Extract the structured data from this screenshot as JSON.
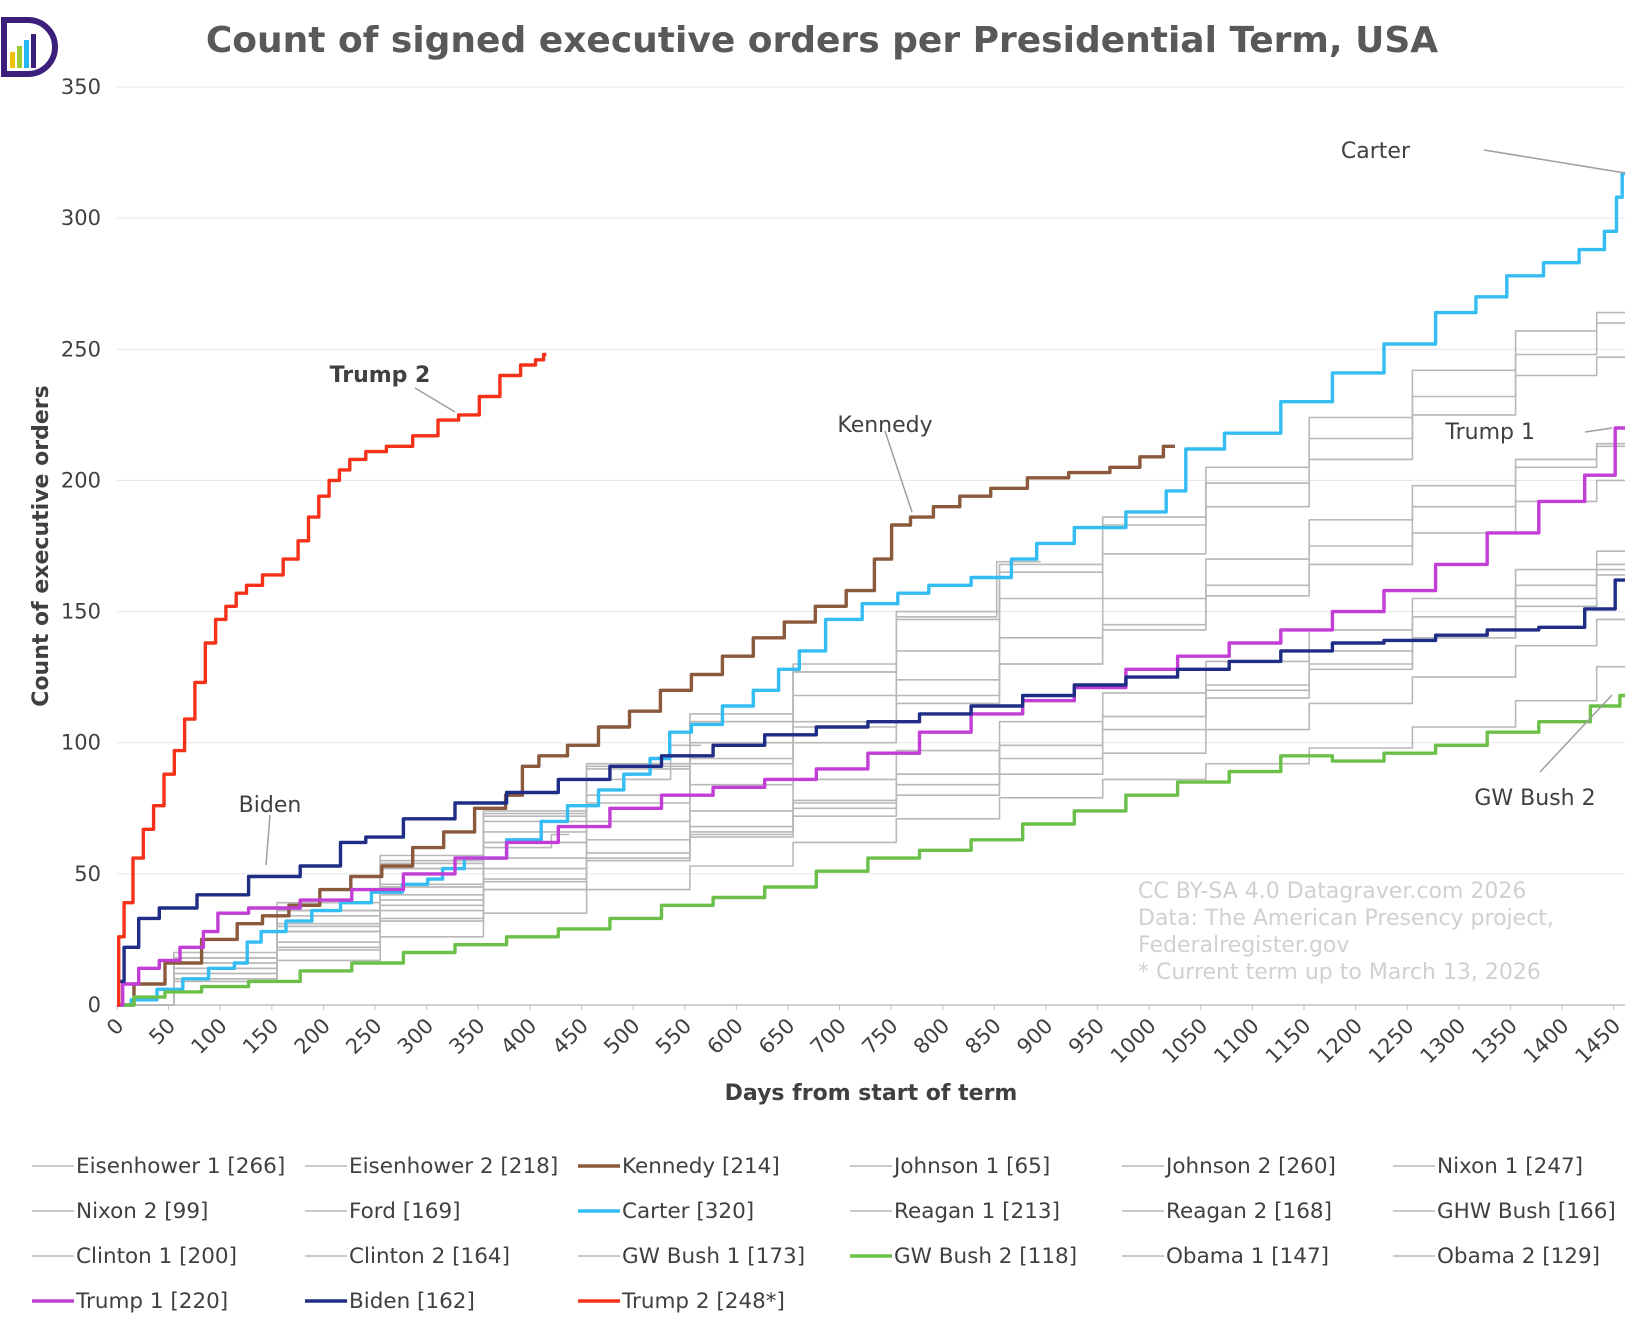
{
  "title": "Count of signed executive orders per Presidential Term, USA",
  "colors": {
    "gray": "#b8b8b8",
    "kennedy": "#8b5a3c",
    "carter": "#33bdf2",
    "gw_bush_2": "#6cc04a",
    "trump_1": "#c23ed6",
    "biden": "#1f2d86",
    "trump_2": "#f5311a",
    "logo_purple": "#3b1f7a"
  },
  "annotations": [
    {
      "text": "Trump 2",
      "bold": true,
      "series": "Trump 2"
    },
    {
      "text": "Kennedy",
      "bold": false,
      "series": "Kennedy"
    },
    {
      "text": "Carter",
      "bold": false,
      "series": "Carter"
    },
    {
      "text": "Trump 1",
      "bold": false,
      "series": "Trump 1"
    },
    {
      "text": "Biden",
      "bold": false,
      "series": "Biden"
    },
    {
      "text": "GW Bush 2",
      "bold": false,
      "series": "GW Bush 2"
    }
  ],
  "credits": [
    "CC BY-SA 4.0 Datagraver.com 2026",
    "Data: The American Presency project,",
    "Federalregister.gov",
    "* Current term up to March 13, 2026"
  ],
  "chart_data": {
    "type": "line",
    "title": "Count of signed executive orders per Presidential Term, USA",
    "xlabel": "Days from start of term",
    "ylabel": "Count of executive orders",
    "xlim": [
      0,
      1461
    ],
    "ylim": [
      0,
      350
    ],
    "x_ticks": [
      0,
      50,
      100,
      150,
      200,
      250,
      300,
      350,
      400,
      450,
      500,
      550,
      600,
      650,
      700,
      750,
      800,
      850,
      900,
      950,
      1000,
      1050,
      1100,
      1150,
      1200,
      1250,
      1300,
      1350,
      1400,
      1450
    ],
    "y_ticks": [
      0,
      50,
      100,
      150,
      200,
      250,
      300,
      350
    ],
    "grid": "horizontal",
    "legend_position": "bottom",
    "series": [
      {
        "name": "Eisenhower 1 [266]",
        "color": "gray",
        "x": [
          0,
          100,
          200,
          300,
          400,
          500,
          600,
          700,
          800,
          900,
          1000,
          1100,
          1200,
          1300,
          1400,
          1461
        ],
        "values": [
          0,
          18,
          36,
          55,
          74,
          92,
          111,
          130,
          150,
          168,
          186,
          205,
          224,
          242,
          257,
          264
        ]
      },
      {
        "name": "Eisenhower 2 [218]",
        "color": "gray",
        "x": [
          0,
          100,
          200,
          300,
          400,
          500,
          600,
          700,
          800,
          900,
          1000,
          1100,
          1200,
          1300,
          1400,
          1461
        ],
        "values": [
          0,
          16,
          31,
          46,
          62,
          77,
          92,
          108,
          124,
          140,
          155,
          170,
          185,
          198,
          208,
          214
        ]
      },
      {
        "name": "Kennedy [214]",
        "color": "kennedy",
        "x": [
          0,
          30,
          60,
          100,
          130,
          150,
          180,
          210,
          240,
          270,
          300,
          330,
          360,
          390,
          395,
          420,
          450,
          480,
          510,
          540,
          570,
          600,
          630,
          660,
          690,
          720,
          745,
          755,
          780,
          800,
          830,
          860,
          900,
          940,
          980,
          1000,
          1025
        ],
        "values": [
          0,
          8,
          16,
          25,
          31,
          34,
          38,
          44,
          49,
          53,
          60,
          66,
          75,
          80,
          91,
          95,
          99,
          106,
          112,
          120,
          126,
          133,
          140,
          146,
          152,
          158,
          170,
          183,
          186,
          190,
          194,
          197,
          201,
          203,
          205,
          209,
          213
        ]
      },
      {
        "name": "Johnson 1 [65]",
        "color": "gray",
        "x": [
          0,
          100,
          200,
          300,
          400,
          438
        ],
        "values": [
          0,
          12,
          30,
          45,
          60,
          65
        ]
      },
      {
        "name": "Johnson 2 [260]",
        "color": "gray",
        "x": [
          0,
          100,
          200,
          300,
          400,
          500,
          600,
          700,
          800,
          900,
          1000,
          1100,
          1200,
          1300,
          1400,
          1461
        ],
        "values": [
          0,
          20,
          39,
          57,
          73,
          91,
          108,
          127,
          147,
          165,
          183,
          199,
          216,
          232,
          248,
          260
        ]
      },
      {
        "name": "Nixon 1 [247]",
        "color": "gray",
        "x": [
          0,
          100,
          200,
          300,
          400,
          500,
          600,
          700,
          800,
          900,
          1000,
          1100,
          1200,
          1300,
          1400,
          1461
        ],
        "values": [
          0,
          14,
          30,
          45,
          62,
          80,
          100,
          118,
          135,
          155,
          172,
          190,
          208,
          225,
          240,
          247
        ]
      },
      {
        "name": "Nixon 2 [99]",
        "color": "gray",
        "x": [
          0,
          100,
          200,
          300,
          400,
          500,
          566
        ],
        "values": [
          0,
          18,
          34,
          52,
          70,
          86,
          99
        ]
      },
      {
        "name": "Ford [169]",
        "color": "gray",
        "x": [
          0,
          100,
          200,
          300,
          400,
          500,
          600,
          700,
          800,
          895
        ],
        "values": [
          0,
          18,
          36,
          54,
          72,
          90,
          108,
          127,
          148,
          169
        ]
      },
      {
        "name": "Carter [320]",
        "color": "carter",
        "x": [
          0,
          25,
          50,
          75,
          100,
          125,
          127,
          150,
          175,
          200,
          230,
          260,
          290,
          310,
          320,
          350,
          400,
          420,
          450,
          480,
          500,
          530,
          540,
          570,
          600,
          630,
          650,
          670,
          700,
          740,
          770,
          800,
          850,
          880,
          900,
          950,
          1000,
          1030,
          1040,
          1100,
          1150,
          1200,
          1250,
          1300,
          1330,
          1360,
          1400,
          1430,
          1450,
          1455,
          1461
        ],
        "values": [
          0,
          2,
          6,
          10,
          14,
          16,
          24,
          28,
          32,
          36,
          39,
          43,
          46,
          48,
          52,
          56,
          63,
          70,
          76,
          82,
          88,
          94,
          104,
          107,
          114,
          120,
          128,
          135,
          147,
          153,
          157,
          160,
          163,
          170,
          176,
          182,
          188,
          196,
          212,
          218,
          230,
          241,
          252,
          264,
          270,
          278,
          283,
          288,
          295,
          308,
          317
        ]
      },
      {
        "name": "Reagan 1 [213]",
        "color": "gray",
        "x": [
          0,
          100,
          200,
          300,
          400,
          500,
          600,
          700,
          800,
          900,
          1000,
          1100,
          1200,
          1300,
          1400,
          1461
        ],
        "values": [
          0,
          14,
          28,
          42,
          56,
          70,
          84,
          100,
          115,
          130,
          145,
          160,
          175,
          190,
          205,
          213
        ]
      },
      {
        "name": "Reagan 2 [168]",
        "color": "gray",
        "x": [
          0,
          100,
          200,
          300,
          400,
          500,
          600,
          700,
          800,
          900,
          1000,
          1100,
          1200,
          1300,
          1400,
          1461
        ],
        "values": [
          0,
          12,
          24,
          36,
          48,
          58,
          68,
          78,
          88,
          99,
          110,
          122,
          135,
          148,
          160,
          168
        ]
      },
      {
        "name": "GHW Bush [166]",
        "color": "gray",
        "x": [
          0,
          100,
          200,
          300,
          400,
          500,
          600,
          700,
          800,
          900,
          1000,
          1100,
          1200,
          1300,
          1400,
          1461
        ],
        "values": [
          0,
          10,
          21,
          32,
          44,
          55,
          65,
          75,
          84,
          94,
          105,
          117,
          128,
          140,
          155,
          166
        ]
      },
      {
        "name": "Clinton 1 [200]",
        "color": "gray",
        "x": [
          0,
          100,
          200,
          300,
          400,
          500,
          600,
          700,
          800,
          900,
          1000,
          1100,
          1200,
          1300,
          1400,
          1461
        ],
        "values": [
          0,
          18,
          36,
          52,
          66,
          80,
          94,
          106,
          118,
          130,
          143,
          156,
          168,
          180,
          192,
          200
        ]
      },
      {
        "name": "Clinton 2 [164]",
        "color": "gray",
        "x": [
          0,
          100,
          200,
          300,
          400,
          500,
          600,
          700,
          800,
          900,
          1000,
          1100,
          1200,
          1300,
          1400,
          1461
        ],
        "values": [
          0,
          10,
          22,
          33,
          44,
          55,
          66,
          77,
          88,
          99,
          110,
          120,
          130,
          140,
          152,
          164
        ]
      },
      {
        "name": "GW Bush 1 [173]",
        "color": "gray",
        "x": [
          0,
          100,
          200,
          300,
          400,
          500,
          600,
          700,
          800,
          900,
          1000,
          1100,
          1200,
          1300,
          1400,
          1461
        ],
        "values": [
          0,
          18,
          28,
          40,
          52,
          63,
          74,
          86,
          97,
          108,
          119,
          131,
          143,
          155,
          166,
          173
        ]
      },
      {
        "name": "GW Bush 2 [118]",
        "color": "gw_bush_2",
        "x": [
          0,
          30,
          60,
          100,
          150,
          200,
          250,
          300,
          350,
          400,
          450,
          500,
          550,
          600,
          650,
          700,
          750,
          800,
          850,
          900,
          950,
          1000,
          1050,
          1100,
          1150,
          1200,
          1250,
          1300,
          1350,
          1400,
          1450,
          1461
        ],
        "values": [
          0,
          3,
          5,
          7,
          9,
          13,
          16,
          20,
          23,
          26,
          29,
          33,
          38,
          41,
          45,
          51,
          56,
          59,
          63,
          69,
          74,
          80,
          85,
          89,
          95,
          93,
          96,
          99,
          104,
          108,
          114,
          118
        ]
      },
      {
        "name": "Obama 1 [147]",
        "color": "gray",
        "x": [
          0,
          100,
          200,
          300,
          400,
          500,
          600,
          700,
          800,
          900,
          1000,
          1100,
          1200,
          1300,
          1400,
          1461
        ],
        "values": [
          0,
          16,
          28,
          38,
          47,
          56,
          64,
          72,
          80,
          88,
          96,
          105,
          115,
          125,
          137,
          147
        ]
      },
      {
        "name": "Obama 2 [129]",
        "color": "gray",
        "x": [
          0,
          100,
          200,
          300,
          400,
          500,
          600,
          700,
          800,
          900,
          1000,
          1100,
          1200,
          1300,
          1400,
          1461
        ],
        "values": [
          0,
          9,
          17,
          26,
          35,
          44,
          53,
          62,
          71,
          79,
          86,
          92,
          98,
          106,
          116,
          129
        ]
      },
      {
        "name": "Trump 1 [220]",
        "color": "trump_1",
        "x": [
          0,
          10,
          30,
          50,
          70,
          95,
          100,
          150,
          200,
          250,
          300,
          350,
          400,
          450,
          500,
          550,
          600,
          650,
          700,
          750,
          800,
          850,
          900,
          950,
          1000,
          1050,
          1100,
          1150,
          1200,
          1250,
          1300,
          1350,
          1400,
          1440,
          1461
        ],
        "values": [
          0,
          8,
          14,
          17,
          22,
          28,
          35,
          37,
          40,
          44,
          50,
          56,
          62,
          68,
          75,
          80,
          83,
          86,
          90,
          96,
          104,
          111,
          116,
          121,
          128,
          133,
          138,
          143,
          150,
          158,
          168,
          180,
          192,
          202,
          220
        ]
      },
      {
        "name": "Biden [162]",
        "color": "biden",
        "x": [
          0,
          3,
          10,
          30,
          50,
          100,
          150,
          200,
          230,
          250,
          300,
          350,
          400,
          450,
          500,
          550,
          600,
          650,
          700,
          750,
          800,
          850,
          900,
          950,
          1000,
          1050,
          1100,
          1150,
          1200,
          1250,
          1300,
          1350,
          1400,
          1440,
          1461
        ],
        "values": [
          0,
          9,
          22,
          33,
          37,
          42,
          49,
          53,
          62,
          64,
          71,
          77,
          81,
          86,
          91,
          95,
          99,
          103,
          106,
          108,
          111,
          114,
          118,
          122,
          125,
          128,
          131,
          135,
          138,
          139,
          141,
          143,
          144,
          151,
          162
        ]
      },
      {
        "name": "Trump 2 [248*]",
        "color": "trump_2",
        "x": [
          0,
          3,
          10,
          20,
          30,
          40,
          50,
          60,
          70,
          80,
          90,
          100,
          110,
          120,
          130,
          150,
          170,
          180,
          190,
          200,
          210,
          220,
          230,
          250,
          270,
          300,
          320,
          340,
          360,
          380,
          400,
          410,
          416
        ],
        "values": [
          0,
          26,
          39,
          56,
          67,
          76,
          88,
          97,
          109,
          123,
          138,
          147,
          152,
          157,
          160,
          164,
          170,
          177,
          186,
          194,
          200,
          204,
          208,
          211,
          213,
          217,
          223,
          225,
          232,
          240,
          244,
          246,
          248
        ]
      }
    ]
  }
}
